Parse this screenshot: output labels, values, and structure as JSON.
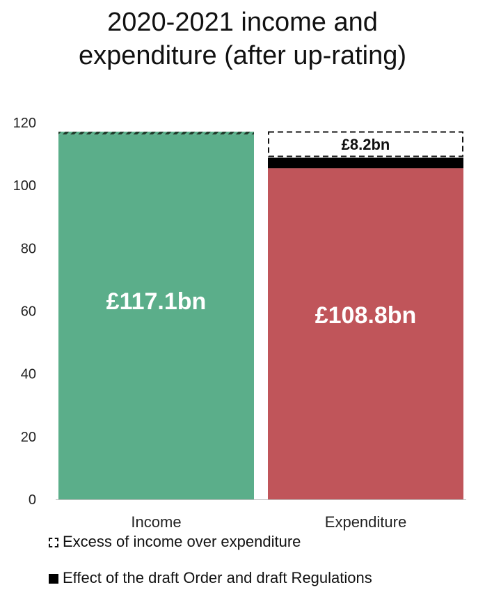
{
  "title_line1": "2020-2021 income and",
  "title_line2": "expenditure (after up-rating)",
  "chart_data": {
    "type": "bar",
    "stacked": true,
    "categories": [
      "Income",
      "Expenditure"
    ],
    "ylim": [
      0,
      120
    ],
    "yticks": [
      0,
      20,
      40,
      60,
      80,
      100,
      120
    ],
    "grid": false,
    "legend_position": "bottom-left",
    "bars": [
      {
        "category": "Income",
        "label": "£117.1bn",
        "total": 117.1,
        "segments": [
          {
            "value": 116.2,
            "color": "#5bae8a"
          },
          {
            "value": 0.9,
            "color": "#5bae8a",
            "pattern": "hatched"
          }
        ]
      },
      {
        "category": "Expenditure",
        "label": "£108.8bn",
        "total": 108.8,
        "excess": 8.2,
        "excess_label": "£8.2bn",
        "segments": [
          {
            "value": 105.5,
            "color": "#c0555a"
          },
          {
            "value": 3.3,
            "color": "#000000"
          }
        ]
      }
    ],
    "legend": [
      {
        "label": "Excess of income over expenditure",
        "style": "dashed-outline"
      },
      {
        "label": "Effect of the draft Order and draft Regulations",
        "color": "#000000"
      }
    ]
  }
}
